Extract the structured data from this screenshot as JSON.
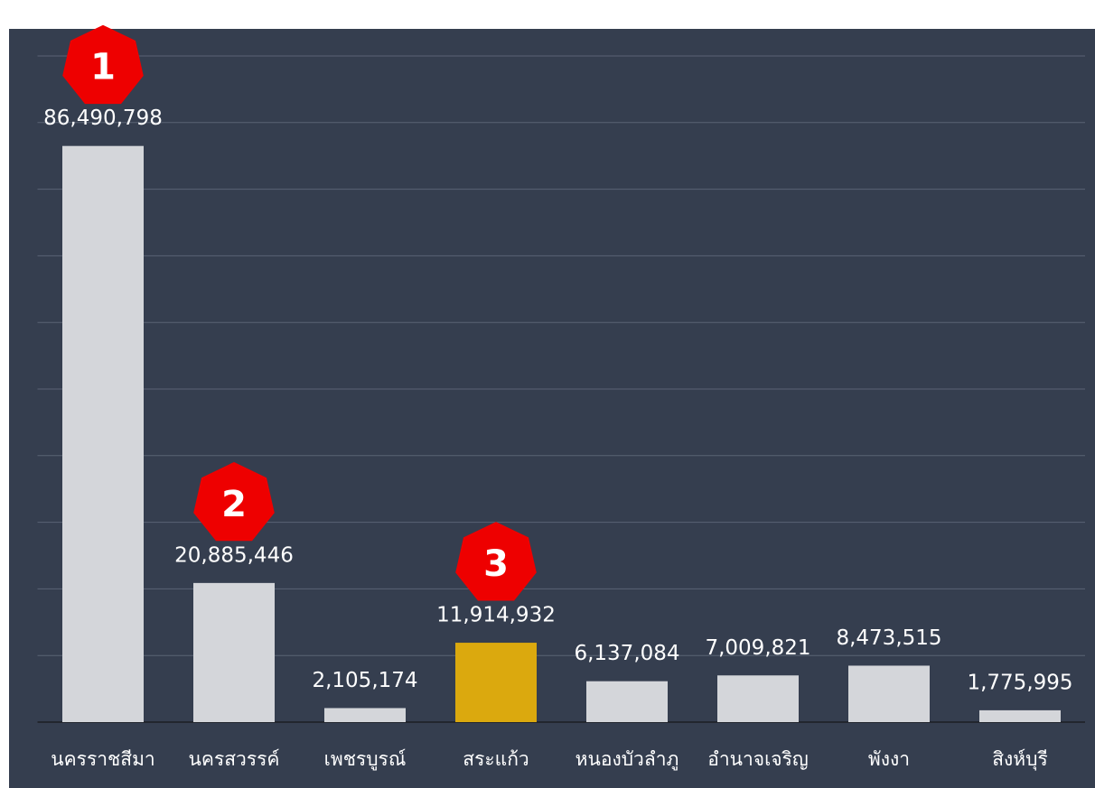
{
  "chart_data": {
    "type": "bar",
    "categories": [
      "นครราชสีมา",
      "นครสวรรค์",
      "เพชรบูรณ์",
      "สระแก้ว",
      "หนองบัวลำภู",
      "อำนาจเจริญ",
      "พังงา",
      "สิงห์บุรี"
    ],
    "values": [
      86490798,
      20885446,
      2105174,
      11914932,
      6137084,
      7009821,
      8473515,
      1775995
    ],
    "value_labels": [
      "86,490,798",
      "20,885,446",
      "2,105,174",
      "11,914,932",
      "6,137,084",
      "7,009,821",
      "8,473,515",
      "1,775,995"
    ],
    "colors": [
      "#d4d6da",
      "#d4d6da",
      "#d4d6da",
      "#dba90e",
      "#d4d6da",
      "#d4d6da",
      "#d4d6da",
      "#d4d6da"
    ],
    "ylim": [
      0,
      100000000
    ],
    "yticks": [
      0,
      10000000,
      20000000,
      30000000,
      40000000,
      50000000,
      60000000,
      70000000,
      80000000,
      90000000,
      100000000
    ],
    "grid": true,
    "badges": [
      {
        "label": "1",
        "category": "นครราชสีมา"
      },
      {
        "label": "2",
        "category": "นครสวรรค์"
      },
      {
        "label": "3",
        "category": "สระแก้ว"
      }
    ],
    "badge_color": "#ee0000"
  }
}
